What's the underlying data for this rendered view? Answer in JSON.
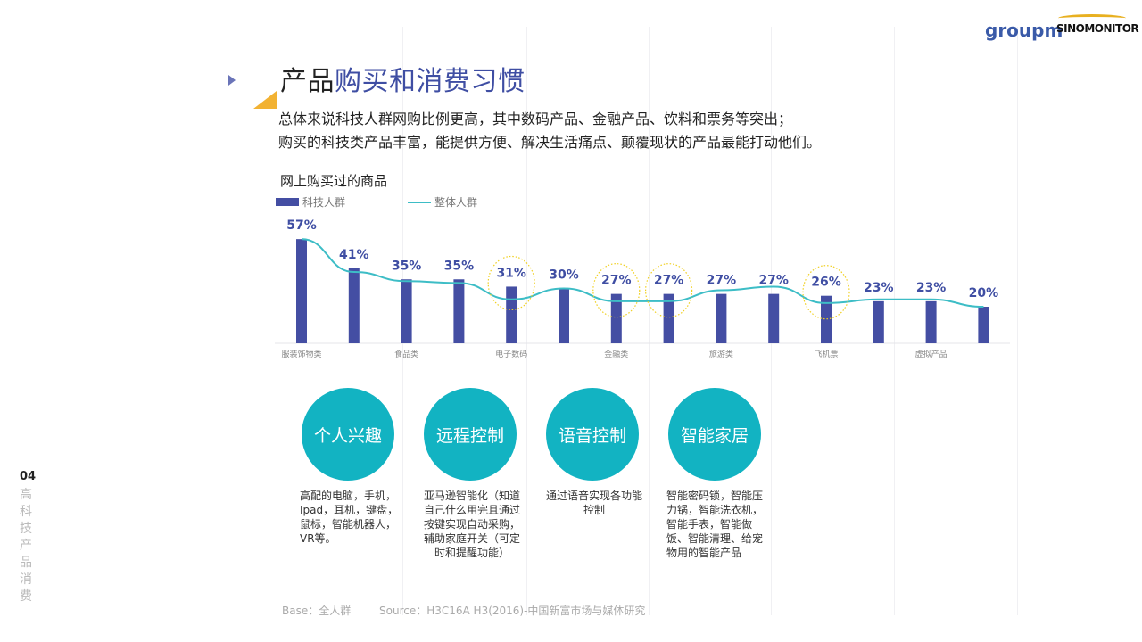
{
  "logos": {
    "groupm": "groupm",
    "sinomonitor": "SINOMONITOR"
  },
  "title": {
    "part1": "产品",
    "part2": "购买和消费习惯"
  },
  "subtitle": [
    "总体来说科技人群网购比例更高，其中数码产品、金融产品、饮料和票务等突出；",
    "购买的科技类产品丰富，能提供方便、解决生活痛点、颠覆现状的产品最能打动他们。"
  ],
  "chart_data": {
    "type": "bar",
    "title": "网上购买过的商品",
    "categories": [
      "服装饰物类",
      "",
      "食品类",
      "",
      "电子数码",
      "",
      "金融类",
      "",
      "旅游类",
      "",
      "飞机票",
      "",
      "虚拟产品",
      ""
    ],
    "series": [
      {
        "name": "科技人群",
        "type": "bar",
        "color": "#444ea3",
        "values": [
          57,
          41,
          35,
          35,
          31,
          30,
          27,
          27,
          27,
          27,
          26,
          23,
          23,
          20
        ]
      },
      {
        "name": "整体人群",
        "type": "line",
        "color": "#3dbdc6",
        "values": [
          57,
          39,
          34,
          33,
          24,
          30,
          23,
          23,
          29,
          31,
          22,
          24,
          24,
          20
        ]
      }
    ],
    "highlighted": [
      4,
      6,
      7,
      10
    ],
    "ylim": [
      0,
      60
    ],
    "legend": "top-left",
    "grid": false
  },
  "features": [
    {
      "label": "个人兴趣",
      "desc": "高配的电脑，手机，Ipad，耳机，键盘，鼠标，智能机器人，VR等。"
    },
    {
      "label": "远程控制",
      "desc": "亚马逊智能化（知道自己什么用完且通过按键实现自动采购，辅助家庭开关（可定时和提醒功能）"
    },
    {
      "label": "语音控制",
      "desc": "通过语音实现各功能控制"
    },
    {
      "label": "智能家居",
      "desc": "智能密码锁，智能压力锅，智能洗衣机，智能手表，智能做饭、智能清理、给宠物用的智能产品"
    }
  ],
  "footer": {
    "base": "Base：全人群",
    "source": "Source：H3C16A H3(2016)-中国新富市场与媒体研究"
  },
  "page": {
    "number": "04",
    "section": "高科技产品消费"
  }
}
